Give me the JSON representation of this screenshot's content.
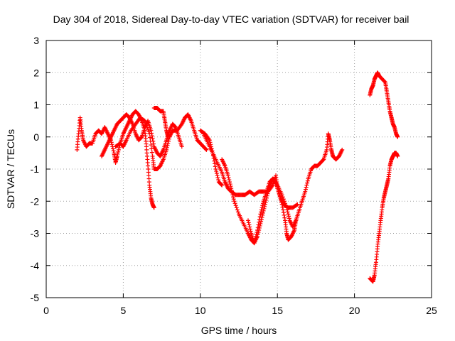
{
  "chart_data": {
    "type": "scatter",
    "title": "Day 304 of 2018, Sidereal Day-to-day VTEC variation (SDTVAR) for receiver bail",
    "xlabel": "GPS time / hours",
    "ylabel": "SDTVAR / TECUs",
    "xlim": [
      0,
      25
    ],
    "ylim": [
      -5,
      3
    ],
    "xticks": [
      "0",
      "5",
      "10",
      "15",
      "20",
      "25"
    ],
    "yticks": [
      "-5",
      "-4",
      "-3",
      "-2",
      "-1",
      "0",
      "1",
      "2",
      "3"
    ],
    "grid": true,
    "legend": "none",
    "marker": "+",
    "color": "#ff0000",
    "series": [
      {
        "values": [
          [
            2.0,
            -0.4
          ],
          [
            2.1,
            0.1
          ],
          [
            2.2,
            0.6
          ],
          [
            2.3,
            0.2
          ],
          [
            2.4,
            -0.1
          ],
          [
            2.6,
            -0.3
          ],
          [
            2.8,
            -0.2
          ],
          [
            3.0,
            -0.2
          ],
          [
            3.2,
            0.1
          ],
          [
            3.4,
            0.2
          ],
          [
            3.6,
            0.1
          ],
          [
            3.8,
            0.3
          ],
          [
            4.0,
            0.1
          ],
          [
            4.2,
            -0.1
          ],
          [
            4.4,
            -0.5
          ],
          [
            4.5,
            -0.8
          ],
          [
            4.6,
            -0.6
          ],
          [
            4.8,
            -0.2
          ],
          [
            5.0,
            0.1
          ],
          [
            5.2,
            0.3
          ],
          [
            5.4,
            0.5
          ],
          [
            5.6,
            0.7
          ],
          [
            5.8,
            0.8
          ],
          [
            6.0,
            0.7
          ],
          [
            6.2,
            0.5
          ],
          [
            6.4,
            0.2
          ],
          [
            6.5,
            -0.3
          ],
          [
            6.6,
            -0.9
          ],
          [
            6.7,
            -1.5
          ],
          [
            6.8,
            -1.9
          ],
          [
            6.9,
            -2.1
          ],
          [
            7.0,
            -2.2
          ]
        ]
      },
      {
        "values": [
          [
            3.6,
            -0.6
          ],
          [
            3.8,
            -0.4
          ],
          [
            4.0,
            -0.2
          ],
          [
            4.2,
            0.0
          ],
          [
            4.4,
            0.2
          ],
          [
            4.6,
            0.4
          ],
          [
            4.8,
            0.5
          ],
          [
            5.0,
            0.6
          ],
          [
            5.2,
            0.7
          ],
          [
            5.4,
            0.6
          ],
          [
            5.6,
            0.4
          ],
          [
            5.8,
            0.1
          ],
          [
            6.0,
            -0.1
          ],
          [
            6.2,
            0.0
          ],
          [
            6.4,
            0.3
          ],
          [
            6.6,
            0.5
          ],
          [
            6.8,
            0.2
          ],
          [
            7.0,
            -0.3
          ],
          [
            7.2,
            -0.5
          ],
          [
            7.4,
            -0.6
          ],
          [
            7.6,
            -0.4
          ],
          [
            7.8,
            -0.1
          ],
          [
            8.0,
            0.2
          ],
          [
            8.2,
            0.4
          ],
          [
            8.4,
            0.3
          ],
          [
            8.6,
            0.0
          ],
          [
            8.8,
            -0.3
          ]
        ]
      },
      {
        "values": [
          [
            4.5,
            -0.3
          ],
          [
            4.8,
            -0.2
          ],
          [
            5.0,
            -0.3
          ],
          [
            5.2,
            -0.1
          ],
          [
            5.5,
            0.2
          ],
          [
            5.8,
            0.4
          ],
          [
            6.1,
            0.6
          ],
          [
            6.4,
            0.5
          ],
          [
            6.7,
            0.1
          ],
          [
            6.9,
            -0.6
          ],
          [
            7.0,
            -1.0
          ],
          [
            7.2,
            -1.0
          ],
          [
            7.4,
            -0.9
          ],
          [
            7.6,
            -0.7
          ],
          [
            7.8,
            -0.4
          ],
          [
            8.0,
            0.0
          ],
          [
            8.2,
            0.2
          ],
          [
            8.5,
            0.2
          ],
          [
            8.8,
            0.4
          ],
          [
            9.0,
            0.6
          ],
          [
            9.2,
            0.7
          ],
          [
            9.4,
            0.5
          ],
          [
            9.6,
            0.2
          ],
          [
            9.8,
            -0.1
          ],
          [
            10.0,
            -0.2
          ],
          [
            10.2,
            -0.3
          ],
          [
            10.4,
            -0.4
          ]
        ]
      },
      {
        "values": [
          [
            7.0,
            0.9
          ],
          [
            7.2,
            0.9
          ],
          [
            7.4,
            0.8
          ],
          [
            7.6,
            0.8
          ],
          [
            7.7,
            0.5
          ],
          [
            7.8,
            0.2
          ],
          [
            7.9,
            0.0
          ]
        ]
      },
      {
        "values": [
          [
            10.0,
            0.2
          ],
          [
            10.3,
            0.1
          ],
          [
            10.6,
            -0.1
          ],
          [
            10.8,
            -0.5
          ],
          [
            11.0,
            -1.0
          ],
          [
            11.2,
            -1.4
          ],
          [
            11.4,
            -1.5
          ]
        ]
      },
      {
        "values": [
          [
            10.2,
            0.1
          ],
          [
            10.5,
            -0.2
          ],
          [
            10.8,
            -0.5
          ],
          [
            11.1,
            -0.8
          ],
          [
            11.4,
            -1.1
          ],
          [
            11.6,
            -1.4
          ],
          [
            11.8,
            -1.6
          ],
          [
            12.0,
            -1.7
          ],
          [
            12.3,
            -1.8
          ],
          [
            12.6,
            -1.8
          ],
          [
            12.9,
            -1.8
          ],
          [
            13.2,
            -1.7
          ],
          [
            13.5,
            -1.8
          ],
          [
            13.8,
            -1.7
          ],
          [
            14.1,
            -1.7
          ],
          [
            14.4,
            -1.7
          ],
          [
            14.7,
            -1.5
          ],
          [
            14.9,
            -1.2
          ],
          [
            15.0,
            -1.6
          ],
          [
            15.2,
            -1.9
          ],
          [
            15.4,
            -2.1
          ],
          [
            15.7,
            -2.2
          ],
          [
            16.0,
            -2.2
          ],
          [
            16.3,
            -2.1
          ]
        ]
      },
      {
        "values": [
          [
            11.4,
            -0.7
          ],
          [
            11.6,
            -0.9
          ],
          [
            11.8,
            -1.2
          ],
          [
            12.0,
            -1.6
          ],
          [
            12.2,
            -2.0
          ],
          [
            12.5,
            -2.4
          ],
          [
            12.8,
            -2.7
          ],
          [
            13.1,
            -3.0
          ],
          [
            13.3,
            -3.2
          ],
          [
            13.5,
            -3.3
          ],
          [
            13.7,
            -3.1
          ],
          [
            13.9,
            -2.7
          ],
          [
            14.1,
            -2.3
          ],
          [
            14.3,
            -1.9
          ],
          [
            14.5,
            -1.5
          ],
          [
            14.7,
            -1.3
          ],
          [
            14.9,
            -1.4
          ],
          [
            15.1,
            -1.7
          ],
          [
            15.3,
            -2.1
          ],
          [
            15.5,
            -2.6
          ],
          [
            15.6,
            -3.0
          ],
          [
            15.7,
            -3.2
          ],
          [
            15.9,
            -3.1
          ],
          [
            16.1,
            -2.9
          ],
          [
            16.2,
            -2.6
          ]
        ]
      },
      {
        "values": [
          [
            13.1,
            -2.6
          ],
          [
            13.3,
            -3.0
          ],
          [
            13.5,
            -3.3
          ],
          [
            13.7,
            -2.9
          ],
          [
            13.9,
            -2.4
          ],
          [
            14.1,
            -2.0
          ],
          [
            14.3,
            -1.7
          ],
          [
            14.5,
            -1.4
          ],
          [
            14.7,
            -1.3
          ],
          [
            15.0,
            -1.5
          ],
          [
            15.3,
            -1.8
          ],
          [
            15.6,
            -2.2
          ],
          [
            15.8,
            -2.6
          ],
          [
            16.0,
            -2.8
          ],
          [
            16.2,
            -2.6
          ],
          [
            16.4,
            -2.3
          ],
          [
            16.6,
            -2.0
          ],
          [
            16.8,
            -1.7
          ],
          [
            17.0,
            -1.3
          ],
          [
            17.2,
            -1.0
          ],
          [
            17.4,
            -0.9
          ],
          [
            17.6,
            -0.9
          ],
          [
            17.8,
            -0.8
          ],
          [
            18.0,
            -0.7
          ],
          [
            18.2,
            -0.4
          ],
          [
            18.3,
            0.1
          ],
          [
            18.4,
            -0.1
          ],
          [
            18.5,
            -0.4
          ],
          [
            18.6,
            -0.6
          ],
          [
            18.8,
            -0.7
          ],
          [
            19.0,
            -0.6
          ],
          [
            19.2,
            -0.4
          ]
        ]
      },
      {
        "values": [
          [
            21.0,
            1.3
          ],
          [
            21.1,
            1.5
          ],
          [
            21.2,
            1.6
          ],
          [
            21.3,
            1.8
          ],
          [
            21.4,
            1.9
          ],
          [
            21.5,
            2.0
          ],
          [
            21.6,
            1.9
          ],
          [
            21.8,
            1.8
          ],
          [
            22.0,
            1.7
          ],
          [
            22.1,
            1.4
          ],
          [
            22.2,
            1.1
          ],
          [
            22.3,
            0.8
          ],
          [
            22.4,
            0.6
          ],
          [
            22.5,
            0.4
          ],
          [
            22.6,
            0.3
          ],
          [
            22.7,
            0.1
          ],
          [
            22.8,
            0.0
          ]
        ]
      },
      {
        "values": [
          [
            21.0,
            -4.4
          ],
          [
            21.2,
            -4.5
          ],
          [
            21.3,
            -4.3
          ],
          [
            21.4,
            -3.9
          ],
          [
            21.5,
            -3.4
          ],
          [
            21.6,
            -3.0
          ],
          [
            21.7,
            -2.6
          ],
          [
            21.8,
            -2.2
          ],
          [
            21.9,
            -1.9
          ],
          [
            22.0,
            -1.7
          ],
          [
            22.1,
            -1.5
          ],
          [
            22.2,
            -1.3
          ],
          [
            22.3,
            -0.9
          ],
          [
            22.4,
            -0.7
          ],
          [
            22.5,
            -0.6
          ],
          [
            22.6,
            -0.5
          ],
          [
            22.7,
            -0.5
          ],
          [
            22.8,
            -0.6
          ]
        ]
      }
    ]
  }
}
